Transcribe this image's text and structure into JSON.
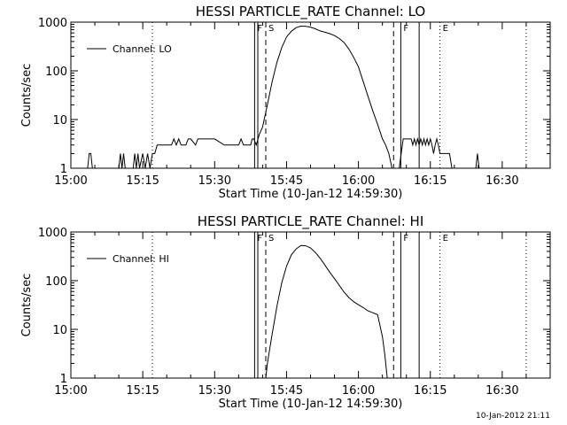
{
  "footer_timestamp": "10-Jan-2012 21:11",
  "chart_data": [
    {
      "type": "line",
      "title": "HESSI PARTICLE_RATE Channel: LO",
      "xlabel": "Start Time (10-Jan-12 14:59:30)",
      "ylabel": "Counts/sec",
      "y_scale": "log",
      "xlim": [
        "15:00",
        "16:40"
      ],
      "ylim": [
        1,
        1000
      ],
      "x_ticks": [
        "15:00",
        "15:15",
        "15:30",
        "15:45",
        "16:00",
        "16:15",
        "16:30"
      ],
      "y_ticks": [
        "1",
        "10",
        "100",
        "1000"
      ],
      "legend": {
        "placement": "top-left",
        "entries": [
          "Channel: LO"
        ]
      },
      "series": [
        {
          "name": "Channel: LO",
          "points": [
            [
              "15:03:30",
              1
            ],
            [
              "15:03:50",
              2
            ],
            [
              "15:04:10",
              2
            ],
            [
              "15:04:30",
              1
            ],
            [
              "15:10:00",
              1
            ],
            [
              "15:10:20",
              2
            ],
            [
              "15:10:40",
              1
            ],
            [
              "15:11:00",
              2
            ],
            [
              "15:11:20",
              1
            ],
            [
              "15:13:00",
              1
            ],
            [
              "15:13:20",
              2
            ],
            [
              "15:13:40",
              1
            ],
            [
              "15:14:00",
              2
            ],
            [
              "15:14:20",
              1
            ],
            [
              "15:15:00",
              2
            ],
            [
              "15:15:30",
              1
            ],
            [
              "15:16:00",
              2
            ],
            [
              "15:16:30",
              1
            ],
            [
              "15:17:00",
              2
            ],
            [
              "15:17:30",
              2
            ],
            [
              "15:18:00",
              3
            ],
            [
              "15:20:00",
              3
            ],
            [
              "15:21:00",
              3
            ],
            [
              "15:21:30",
              4
            ],
            [
              "15:22:00",
              3
            ],
            [
              "15:22:30",
              4
            ],
            [
              "15:23:00",
              3
            ],
            [
              "15:24:00",
              3
            ],
            [
              "15:24:30",
              4
            ],
            [
              "15:25:00",
              4
            ],
            [
              "15:26:00",
              3
            ],
            [
              "15:26:30",
              4
            ],
            [
              "15:28:00",
              4
            ],
            [
              "15:30:00",
              4
            ],
            [
              "15:32:00",
              3
            ],
            [
              "15:34:00",
              3
            ],
            [
              "15:35:00",
              3
            ],
            [
              "15:35:30",
              4
            ],
            [
              "15:36:00",
              3
            ],
            [
              "15:36:20",
              3
            ],
            [
              "15:37:30",
              3
            ],
            [
              "15:37:50",
              4
            ],
            [
              "15:38:10",
              4
            ],
            [
              "15:38:40",
              3
            ],
            [
              "15:39:20",
              5
            ],
            [
              "15:40:00",
              7
            ],
            [
              "15:41:00",
              20
            ],
            [
              "15:42:00",
              60
            ],
            [
              "15:43:00",
              150
            ],
            [
              "15:44:00",
              300
            ],
            [
              "15:45:00",
              500
            ],
            [
              "15:46:00",
              650
            ],
            [
              "15:47:00",
              770
            ],
            [
              "15:48:00",
              830
            ],
            [
              "15:49:00",
              820
            ],
            [
              "15:50:00",
              790
            ],
            [
              "15:51:00",
              730
            ],
            [
              "15:52:00",
              660
            ],
            [
              "15:53:00",
              620
            ],
            [
              "15:54:00",
              580
            ],
            [
              "15:55:00",
              530
            ],
            [
              "15:56:00",
              460
            ],
            [
              "15:57:00",
              380
            ],
            [
              "15:58:00",
              280
            ],
            [
              "15:59:00",
              190
            ],
            [
              "16:00:00",
              120
            ],
            [
              "16:01:00",
              60
            ],
            [
              "16:02:00",
              30
            ],
            [
              "16:03:00",
              15
            ],
            [
              "16:04:00",
              8
            ],
            [
              "16:05:00",
              4
            ],
            [
              "16:05:40",
              3
            ],
            [
              "16:06:20",
              2
            ],
            [
              "16:07:00",
              1
            ],
            [
              "16:08:30",
              1
            ],
            [
              "16:09:20",
              4
            ],
            [
              "16:10:00",
              4
            ],
            [
              "16:11:00",
              4
            ],
            [
              "16:11:20",
              3
            ],
            [
              "16:11:40",
              4
            ],
            [
              "16:12:00",
              3
            ],
            [
              "16:12:20",
              4
            ],
            [
              "16:12:40",
              3
            ],
            [
              "16:13:00",
              4
            ],
            [
              "16:13:20",
              3
            ],
            [
              "16:13:40",
              4
            ],
            [
              "16:14:00",
              3
            ],
            [
              "16:14:20",
              4
            ],
            [
              "16:14:40",
              3
            ],
            [
              "16:15:00",
              4
            ],
            [
              "16:15:20",
              3
            ],
            [
              "16:15:40",
              2
            ],
            [
              "16:16:00",
              3
            ],
            [
              "16:16:20",
              4
            ],
            [
              "16:16:40",
              3
            ],
            [
              "16:17:00",
              2
            ],
            [
              "16:19:00",
              2
            ],
            [
              "16:19:30",
              1
            ],
            [
              "16:24:30",
              1
            ],
            [
              "16:24:50",
              2
            ],
            [
              "16:25:10",
              1
            ]
          ]
        }
      ],
      "markers": [
        {
          "time": "15:38:20",
          "style": "solid",
          "label": "F"
        },
        {
          "time": "15:39:00",
          "style": "solid",
          "label": ""
        },
        {
          "time": "15:40:40",
          "style": "dashed",
          "label": "S"
        },
        {
          "time": "16:07:20",
          "style": "dashed",
          "label": ""
        },
        {
          "time": "16:08:50",
          "style": "solid",
          "label": "F"
        },
        {
          "time": "16:12:40",
          "style": "solid",
          "label": ""
        },
        {
          "time": "16:17:00",
          "style": "dotted",
          "label": "E"
        },
        {
          "time": "15:17:00",
          "style": "dotted",
          "label": ""
        },
        {
          "time": "16:35:00",
          "style": "dotted",
          "label": ""
        }
      ]
    },
    {
      "type": "line",
      "title": "HESSI PARTICLE_RATE Channel: HI",
      "xlabel": "Start Time (10-Jan-12 14:59:30)",
      "ylabel": "Counts/sec",
      "y_scale": "log",
      "xlim": [
        "15:00",
        "16:40"
      ],
      "ylim": [
        1,
        1000
      ],
      "x_ticks": [
        "15:00",
        "15:15",
        "15:30",
        "15:45",
        "16:00",
        "16:15",
        "16:30"
      ],
      "y_ticks": [
        "1",
        "10",
        "100",
        "1000"
      ],
      "legend": {
        "placement": "top-left",
        "entries": [
          "Channel: HI"
        ]
      },
      "series": [
        {
          "name": "Channel: HI",
          "points": [
            [
              "15:40:40",
              1
            ],
            [
              "15:41:00",
              2
            ],
            [
              "15:42:00",
              8
            ],
            [
              "15:43:00",
              30
            ],
            [
              "15:44:00",
              90
            ],
            [
              "15:45:00",
              200
            ],
            [
              "15:46:00",
              340
            ],
            [
              "15:47:00",
              450
            ],
            [
              "15:48:00",
              530
            ],
            [
              "15:49:00",
              520
            ],
            [
              "15:50:00",
              470
            ],
            [
              "15:51:00",
              380
            ],
            [
              "15:52:00",
              290
            ],
            [
              "15:53:00",
              210
            ],
            [
              "15:54:00",
              150
            ],
            [
              "15:55:00",
              110
            ],
            [
              "15:56:00",
              80
            ],
            [
              "15:57:00",
              58
            ],
            [
              "15:58:00",
              45
            ],
            [
              "15:59:00",
              37
            ],
            [
              "16:00:00",
              32
            ],
            [
              "16:01:00",
              28
            ],
            [
              "16:02:00",
              24
            ],
            [
              "16:03:00",
              22
            ],
            [
              "16:04:00",
              20
            ],
            [
              "16:04:30",
              12
            ],
            [
              "16:05:00",
              7
            ],
            [
              "16:05:30",
              3
            ],
            [
              "16:06:00",
              1
            ]
          ]
        }
      ],
      "markers": [
        {
          "time": "15:38:20",
          "style": "solid",
          "label": "F"
        },
        {
          "time": "15:39:00",
          "style": "solid",
          "label": ""
        },
        {
          "time": "15:40:40",
          "style": "dashed",
          "label": "S"
        },
        {
          "time": "16:07:20",
          "style": "dashed",
          "label": ""
        },
        {
          "time": "16:08:50",
          "style": "solid",
          "label": "F"
        },
        {
          "time": "16:12:40",
          "style": "solid",
          "label": ""
        },
        {
          "time": "16:17:00",
          "style": "dotted",
          "label": "E"
        },
        {
          "time": "15:17:00",
          "style": "dotted",
          "label": ""
        },
        {
          "time": "16:35:00",
          "style": "dotted",
          "label": ""
        }
      ]
    }
  ]
}
